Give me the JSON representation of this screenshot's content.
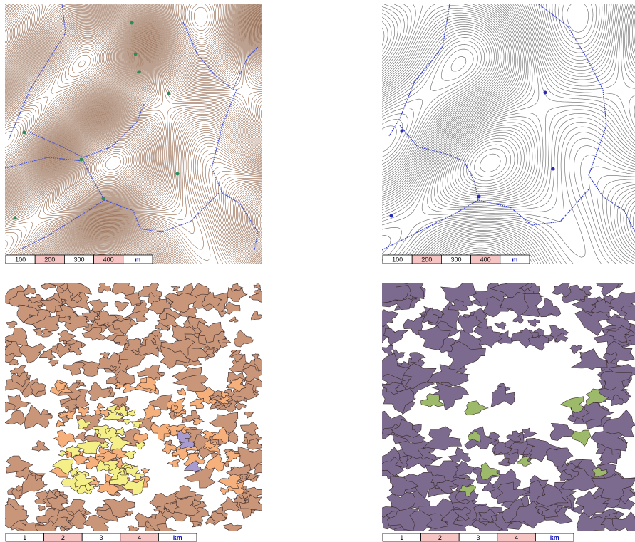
{
  "panels": [
    {
      "scale_bar": {
        "labels": [
          "100",
          "200",
          "300",
          "400"
        ],
        "unit": "m"
      }
    },
    {
      "scale_bar": {
        "labels": [
          "100",
          "200",
          "300",
          "400"
        ],
        "unit": "m"
      }
    },
    {
      "scale_bar": {
        "labels": [
          "1",
          "2",
          "3",
          "4"
        ],
        "unit": "km"
      }
    },
    {
      "scale_bar": {
        "labels": [
          "1",
          "2",
          "3",
          "4"
        ],
        "unit": "km"
      }
    }
  ]
}
